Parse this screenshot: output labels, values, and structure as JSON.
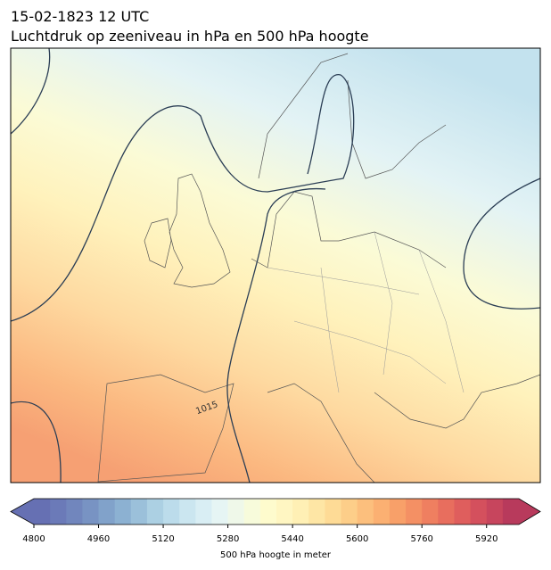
{
  "header": {
    "title": "15-02-1823 12 UTC",
    "subtitle": "Luchtdruk op zeeniveau in hPa en 500 hPa hoogte"
  },
  "map": {
    "contour_labels": [
      "1015"
    ]
  },
  "colorbar": {
    "xlim": [
      4800,
      6000
    ],
    "xticks": [
      4800,
      4960,
      5120,
      5280,
      5440,
      5600,
      5760,
      5920
    ],
    "xlabel": "500 hPa hoogte in meter",
    "colors": [
      "#6670b3",
      "#6b7ab8",
      "#7186bd",
      "#7893c3",
      "#81a2ca",
      "#8cb1d2",
      "#9bc0da",
      "#acd0e3",
      "#bcdceb",
      "#cbe6f0",
      "#d9eef4",
      "#e6f5f4",
      "#eff8e9",
      "#f7fbdb",
      "#fefbcd",
      "#fff6c2",
      "#fff0b5",
      "#fee6a5",
      "#fedb96",
      "#fdce89",
      "#fcbf7d",
      "#fbb072",
      "#f8a069",
      "#f49064",
      "#ef7f60",
      "#e86e5e",
      "#df5e5d",
      "#d4505d",
      "#c7455d",
      "#b83a5c"
    ]
  }
}
